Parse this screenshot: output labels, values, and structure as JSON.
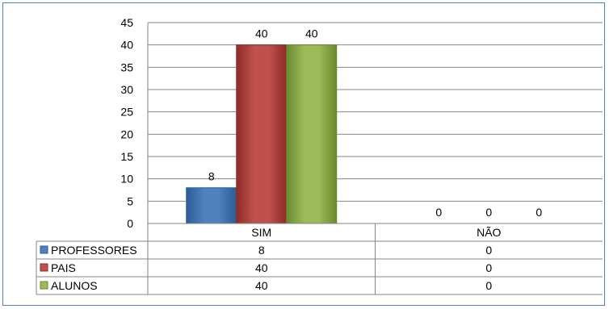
{
  "chart_data": {
    "type": "bar",
    "categories": [
      "SIM",
      "NÃO"
    ],
    "series": [
      {
        "name": "PROFESSORES",
        "values": [
          8,
          0
        ],
        "color": "#4f81bd",
        "color_dark": "#2c5c96"
      },
      {
        "name": "PAIS",
        "values": [
          40,
          0
        ],
        "color": "#c0504d",
        "color_dark": "#8e2b28"
      },
      {
        "name": "ALUNOS",
        "values": [
          40,
          0
        ],
        "color": "#9bbb59",
        "color_dark": "#6a8a2e"
      }
    ],
    "ylim": [
      0,
      45
    ],
    "yticks": [
      "0",
      "5",
      "10",
      "15",
      "20",
      "25",
      "30",
      "35",
      "40",
      "45"
    ],
    "grid": true,
    "legend": "data-table"
  },
  "data_table": {
    "rows": [
      {
        "label": "PROFESSORES",
        "values": [
          "8",
          "0"
        ]
      },
      {
        "label": "PAIS",
        "values": [
          "40",
          "0"
        ]
      },
      {
        "label": "ALUNOS",
        "values": [
          "40",
          "0"
        ]
      }
    ]
  }
}
